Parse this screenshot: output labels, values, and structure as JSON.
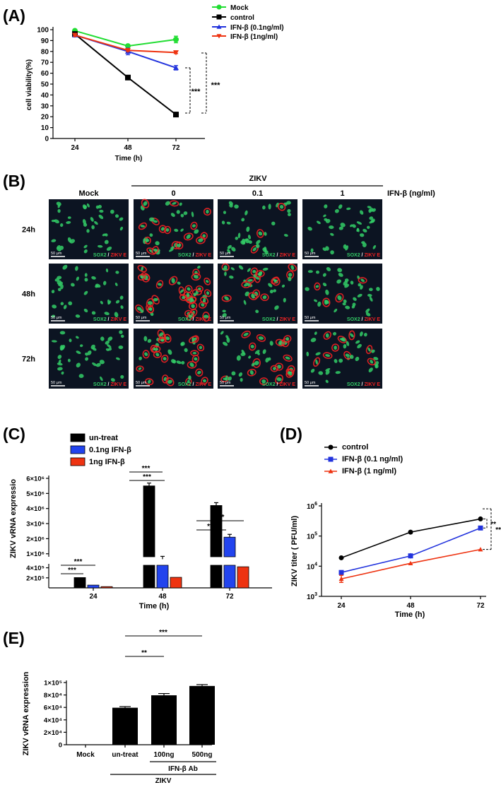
{
  "colors": {
    "mock": "#22dd33",
    "control": "#000000",
    "ifn01": "#2233dd",
    "ifn1": "#ee3311",
    "untreat": "#000000",
    "bar01": "#2244ee",
    "bar1": "#ee3311",
    "micro_bg": "#0c1422",
    "sox2": "#33cc66",
    "zikv": "#ee2222"
  },
  "panels": {
    "a": "(A)",
    "b": "(B)",
    "c": "(C)",
    "d": "(D)",
    "e": "(E)"
  },
  "chart_data": [
    {
      "id": "A",
      "type": "line",
      "title": "",
      "xlabel": "Time (h)",
      "ylabel": "cell viability(%)",
      "x": [
        24,
        48,
        72
      ],
      "xticks": [
        "24",
        "48",
        "72"
      ],
      "ylim": [
        0,
        100
      ],
      "yticks": [
        "0",
        "10",
        "20",
        "30",
        "40",
        "50",
        "60",
        "70",
        "80",
        "90",
        "100"
      ],
      "series": [
        {
          "name": "Mock",
          "values": [
            99,
            85,
            91
          ],
          "err": [
            1,
            1,
            3
          ]
        },
        {
          "name": "control",
          "values": [
            96,
            56,
            22
          ],
          "err": [
            1,
            2,
            2
          ]
        },
        {
          "name": "IFN-β (0.1ng/ml)",
          "values": [
            95,
            80,
            65
          ],
          "err": [
            1,
            3,
            2
          ]
        },
        {
          "name": "IFN-β (1ng/ml)",
          "values": [
            95,
            81,
            79
          ],
          "err": [
            1,
            1,
            1
          ]
        }
      ],
      "annotations": [
        "***",
        "***"
      ],
      "legend": "top-right"
    },
    {
      "id": "C",
      "type": "bar",
      "title": "",
      "xlabel": "Time (h)",
      "ylabel": "ZIKV  vRNA expressio",
      "categories": [
        "24",
        "48",
        "72"
      ],
      "upper_ticks": [
        "1×10⁶",
        "2×10⁶",
        "3×10⁶",
        "4×10⁶",
        "5×10⁶",
        "6×10⁶"
      ],
      "lower_ticks": [
        "2×10⁵",
        "4×10⁵"
      ],
      "series": [
        {
          "name": "un-treat",
          "values": [
            205000,
            5500000,
            4200000
          ]
        },
        {
          "name": "0.1ng IFN-β",
          "values": [
            55000,
            640000,
            2100000
          ]
        },
        {
          "name": "1ng IFN-β",
          "values": [
            25000,
            210000,
            420000
          ]
        }
      ],
      "annotations": [
        "***",
        "***",
        "***",
        "***",
        "***",
        "***"
      ],
      "legend": "top-left"
    },
    {
      "id": "D",
      "type": "line",
      "title": "",
      "xlabel": "Time (h)",
      "ylabel": "ZIKV titer ( PFU/ml)",
      "log_y": true,
      "x": [
        24,
        48,
        72
      ],
      "xticks": [
        "24",
        "48",
        "72"
      ],
      "ylim": [
        1000,
        1000000
      ],
      "series": [
        {
          "name": "control",
          "values": [
            19000,
            135000,
            370000
          ]
        },
        {
          "name": "IFN-β (0.1 ng/ml)",
          "values": [
            6200,
            22000,
            185000
          ]
        },
        {
          "name": "IFN-β (1 ng/ml)",
          "values": [
            3800,
            12500,
            36000
          ]
        }
      ],
      "annotations": [
        "**",
        "**"
      ],
      "legend": "top-left"
    },
    {
      "id": "E",
      "type": "bar",
      "title": "",
      "xlabel": "",
      "ylabel": "ZIKV vRNA expression",
      "categories": [
        "Mock",
        "un-treat",
        "100ng",
        "500ng"
      ],
      "values": [
        0,
        59500,
        79500,
        94500
      ],
      "err": [
        0,
        1800,
        2800,
        2200
      ],
      "ylim": [
        0,
        100000
      ],
      "yticks": [
        "0",
        "2×10⁴",
        "4×10⁴",
        "6×10⁴",
        "8×10⁴",
        "1×10⁵"
      ],
      "group_labels": [
        "IFN-β Ab",
        "ZIKV"
      ],
      "annotations": [
        "**",
        "***"
      ]
    }
  ],
  "micrograph": {
    "zikv_header": "ZIKV",
    "columns": [
      "Mock",
      "0",
      "0.1",
      "1"
    ],
    "rows": [
      "24h",
      "48h",
      "72h"
    ],
    "dose_label": "IFN-β (ng/ml)",
    "scale_bar": "50 μm",
    "marker_sox2": "SOX2",
    "marker_sep": " / ",
    "marker_zikv": "ZIKV E"
  }
}
